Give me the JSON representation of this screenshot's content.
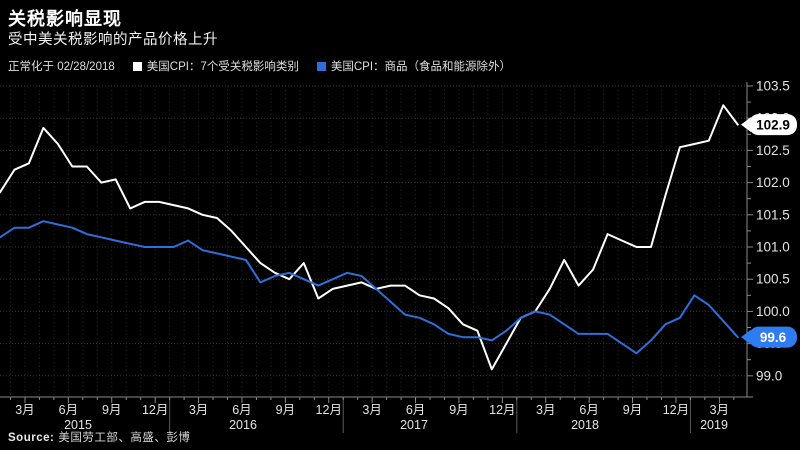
{
  "title": "关税影响显现",
  "subtitle": "受中美关税影响的产品价格上升",
  "legend": {
    "note": "正常化于 02/28/2018"
  },
  "source": {
    "label": "Source:",
    "text": "美国劳工部、高盛、彭博"
  },
  "colors": {
    "background": "#000000",
    "grid_h": "#343434",
    "grid_v": "#272727",
    "axis": "#8a8a8a",
    "tick_text": "#e3e3e3",
    "year_separator": "#5a5a5a"
  },
  "chart_data": {
    "type": "line",
    "title": "关税影响显现 — 受中美关税影响的产品价格上升",
    "note": "正常化于 02/28/2018",
    "x_unit": "month",
    "categories": [
      "2015-01",
      "2015-02",
      "2015-03",
      "2015-04",
      "2015-05",
      "2015-06",
      "2015-07",
      "2015-08",
      "2015-09",
      "2015-10",
      "2015-11",
      "2015-12",
      "2016-01",
      "2016-02",
      "2016-03",
      "2016-04",
      "2016-05",
      "2016-06",
      "2016-07",
      "2016-08",
      "2016-09",
      "2016-10",
      "2016-11",
      "2016-12",
      "2017-01",
      "2017-02",
      "2017-03",
      "2017-04",
      "2017-05",
      "2017-06",
      "2017-07",
      "2017-08",
      "2017-09",
      "2017-10",
      "2017-11",
      "2017-12",
      "2018-01",
      "2018-02",
      "2018-03",
      "2018-04",
      "2018-05",
      "2018-06",
      "2018-07",
      "2018-08",
      "2018-09",
      "2018-10",
      "2018-11",
      "2018-12",
      "2019-01",
      "2019-02",
      "2019-03",
      "2019-04"
    ],
    "series": [
      {
        "name": "美国CPI：7个受关税影响类别",
        "color": "#ffffff",
        "badge_label": "102.9",
        "badge_bg": "#ffffff",
        "badge_fg": "#000000",
        "values": [
          101.85,
          102.2,
          102.3,
          102.85,
          102.6,
          102.25,
          102.25,
          102.0,
          102.05,
          101.6,
          101.7,
          101.7,
          101.65,
          101.6,
          101.5,
          101.45,
          101.25,
          101.0,
          100.75,
          100.6,
          100.5,
          100.75,
          100.2,
          100.35,
          100.4,
          100.45,
          100.35,
          100.4,
          100.4,
          100.25,
          100.2,
          100.05,
          99.8,
          99.7,
          99.1,
          99.5,
          99.9,
          100.0,
          100.35,
          100.8,
          100.4,
          100.65,
          101.2,
          101.1,
          101.0,
          101.0,
          101.8,
          102.55,
          102.6,
          102.65,
          103.2,
          102.9
        ]
      },
      {
        "name": "美国CPI：商品（食品和能源除外）",
        "color": "#2e6fdb",
        "badge_label": "99.6",
        "badge_bg": "#2f7bf0",
        "badge_fg": "#ffffff",
        "values": [
          101.15,
          101.3,
          101.3,
          101.4,
          101.35,
          101.3,
          101.2,
          101.15,
          101.1,
          101.05,
          101.0,
          101.0,
          101.0,
          101.1,
          100.95,
          100.9,
          100.85,
          100.8,
          100.45,
          100.55,
          100.6,
          100.5,
          100.4,
          100.5,
          100.6,
          100.55,
          100.35,
          100.15,
          99.95,
          99.9,
          99.8,
          99.65,
          99.6,
          99.6,
          99.55,
          99.7,
          99.9,
          100.0,
          99.95,
          99.8,
          99.65,
          99.65,
          99.65,
          99.5,
          99.35,
          99.55,
          99.8,
          99.9,
          100.25,
          100.1,
          99.85,
          99.6
        ]
      }
    ],
    "x_tick_labels": [
      "3月",
      "6月",
      "9月",
      "12月",
      "3月",
      "6月",
      "9月",
      "12月",
      "3月",
      "6月",
      "9月",
      "12月",
      "3月",
      "6月",
      "9月",
      "12月",
      "3月"
    ],
    "year_labels": [
      "2015",
      "2016",
      "2017",
      "2018",
      "2019"
    ],
    "y_tick_labels": [
      "99.0",
      "99.5",
      "100.0",
      "100.5",
      "101.0",
      "101.5",
      "102.0",
      "102.5",
      "103.0",
      "103.5"
    ],
    "ylim": [
      99.0,
      103.5
    ],
    "y_step": 0.5,
    "grid": "dotted monthly vertical + 0.5-step horizontal",
    "legend_position": "top"
  }
}
